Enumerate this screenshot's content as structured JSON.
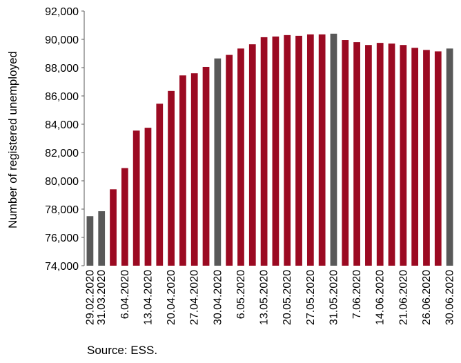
{
  "chart_data": {
    "type": "bar",
    "title": "",
    "xlabel": "",
    "ylabel": "Number of registered unemployed",
    "ylim": [
      74000,
      92000
    ],
    "yticks": [
      74000,
      76000,
      78000,
      80000,
      82000,
      84000,
      86000,
      88000,
      90000,
      92000
    ],
    "ytick_labels": [
      "74,000",
      "76,000",
      "78,000",
      "80,000",
      "82,000",
      "84,000",
      "86,000",
      "88,000",
      "90,000",
      "92,000"
    ],
    "grid": false,
    "legend": "none",
    "colors": {
      "default": "#9b0a22",
      "highlight": "#595959"
    },
    "categories": [
      "29.02.2020",
      "31.03.2020",
      "",
      "6.04.2020",
      "",
      "13.04.2020",
      "",
      "20.04.2020",
      "",
      "27.04.2020",
      "",
      "30.04.2020",
      "",
      "6.05.2020",
      "",
      "13.05.2020",
      "",
      "20.05.2020",
      "",
      "27.05.2020",
      "",
      "31.05.2020",
      "",
      "7.06.2020",
      "",
      "14.06.2020",
      "",
      "21.06.2020",
      "",
      "26.06.2020",
      "",
      "30.06.2020"
    ],
    "values": [
      77500,
      77850,
      79400,
      80900,
      83550,
      83750,
      85450,
      86350,
      87450,
      87600,
      88050,
      88650,
      88900,
      89350,
      89650,
      90150,
      90200,
      90300,
      90250,
      90350,
      90350,
      90400,
      89950,
      89800,
      89600,
      89750,
      89700,
      89600,
      89400,
      89250,
      89150,
      89350
    ],
    "highlighted": [
      true,
      true,
      false,
      false,
      false,
      false,
      false,
      false,
      false,
      false,
      false,
      true,
      false,
      false,
      false,
      false,
      false,
      false,
      false,
      false,
      false,
      true,
      false,
      false,
      false,
      false,
      false,
      false,
      false,
      false,
      false,
      true
    ]
  },
  "source_note": "Source: ESS."
}
